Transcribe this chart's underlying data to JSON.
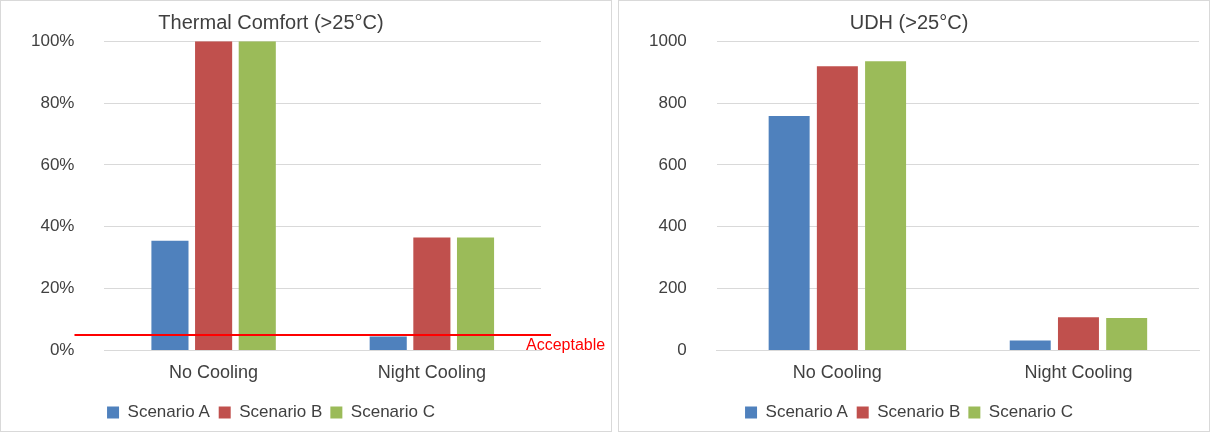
{
  "chart_data": [
    {
      "type": "bar",
      "title": "Thermal Comfort (>25°C)",
      "categories": [
        "No Cooling",
        "Night Cooling"
      ],
      "series": [
        {
          "name": "Scenario A",
          "color": "#4f81bd",
          "values": [
            35.5,
            4.5
          ]
        },
        {
          "name": "Scenario B",
          "color": "#c0504d",
          "values": [
            100,
            36.5
          ]
        },
        {
          "name": "Scenario C",
          "color": "#9bbb59",
          "values": [
            100,
            36.5
          ]
        }
      ],
      "ylim": [
        0,
        100
      ],
      "yticks": [
        {
          "value": 0,
          "label": "0%"
        },
        {
          "value": 20,
          "label": "20%"
        },
        {
          "value": 40,
          "label": "40%"
        },
        {
          "value": 60,
          "label": "60%"
        },
        {
          "value": 80,
          "label": "80%"
        },
        {
          "value": 100,
          "label": "100%"
        }
      ],
      "grid": "y",
      "legend": "bottom",
      "ref_lines": [
        {
          "axis": "y",
          "value": 5,
          "label": "Acceptable",
          "color": "#ff0000"
        }
      ]
    },
    {
      "type": "bar",
      "title": "UDH (>25°C)",
      "categories": [
        "No Cooling",
        "Night Cooling"
      ],
      "series": [
        {
          "name": "Scenario A",
          "color": "#4f81bd",
          "values": [
            758,
            32
          ]
        },
        {
          "name": "Scenario B",
          "color": "#c0504d",
          "values": [
            919,
            107
          ]
        },
        {
          "name": "Scenario C",
          "color": "#9bbb59",
          "values": [
            935,
            105
          ]
        }
      ],
      "ylim": [
        0,
        1000
      ],
      "yticks": [
        0,
        200,
        400,
        600,
        800,
        1000
      ],
      "grid": "y",
      "legend": "bottom"
    }
  ]
}
